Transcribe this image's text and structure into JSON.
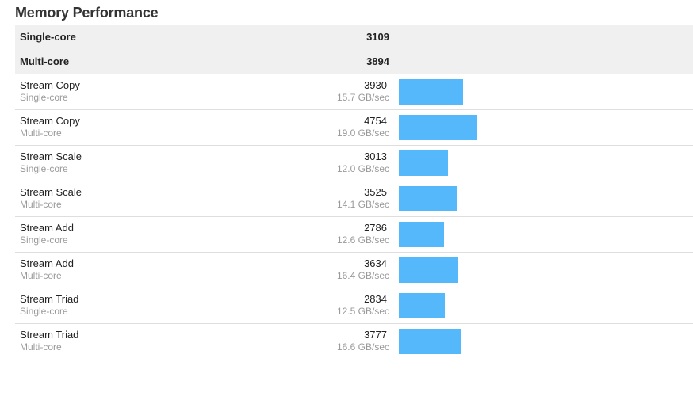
{
  "title": "Memory Performance",
  "summary": [
    {
      "label": "Single-core",
      "score": "3109"
    },
    {
      "label": "Multi-core",
      "score": "3894"
    }
  ],
  "rows": [
    {
      "name": "Stream Copy",
      "sub": "Single-core",
      "score": "3930",
      "rate": "15.7 GB/sec",
      "value": 3930
    },
    {
      "name": "Stream Copy",
      "sub": "Multi-core",
      "score": "4754",
      "rate": "19.0 GB/sec",
      "value": 4754
    },
    {
      "name": "Stream Scale",
      "sub": "Single-core",
      "score": "3013",
      "rate": "12.0 GB/sec",
      "value": 3013
    },
    {
      "name": "Stream Scale",
      "sub": "Multi-core",
      "score": "3525",
      "rate": "14.1 GB/sec",
      "value": 3525
    },
    {
      "name": "Stream Add",
      "sub": "Single-core",
      "score": "2786",
      "rate": "12.6 GB/sec",
      "value": 2786
    },
    {
      "name": "Stream Add",
      "sub": "Multi-core",
      "score": "3634",
      "rate": "16.4 GB/sec",
      "value": 3634
    },
    {
      "name": "Stream Triad",
      "sub": "Single-core",
      "score": "2834",
      "rate": "12.5 GB/sec",
      "value": 2834
    },
    {
      "name": "Stream Triad",
      "sub": "Multi-core",
      "score": "3777",
      "rate": "16.6 GB/sec",
      "value": 3777
    }
  ],
  "colors": {
    "bar": "#55b8fb",
    "summary_background": "#f0f0f0"
  }
}
